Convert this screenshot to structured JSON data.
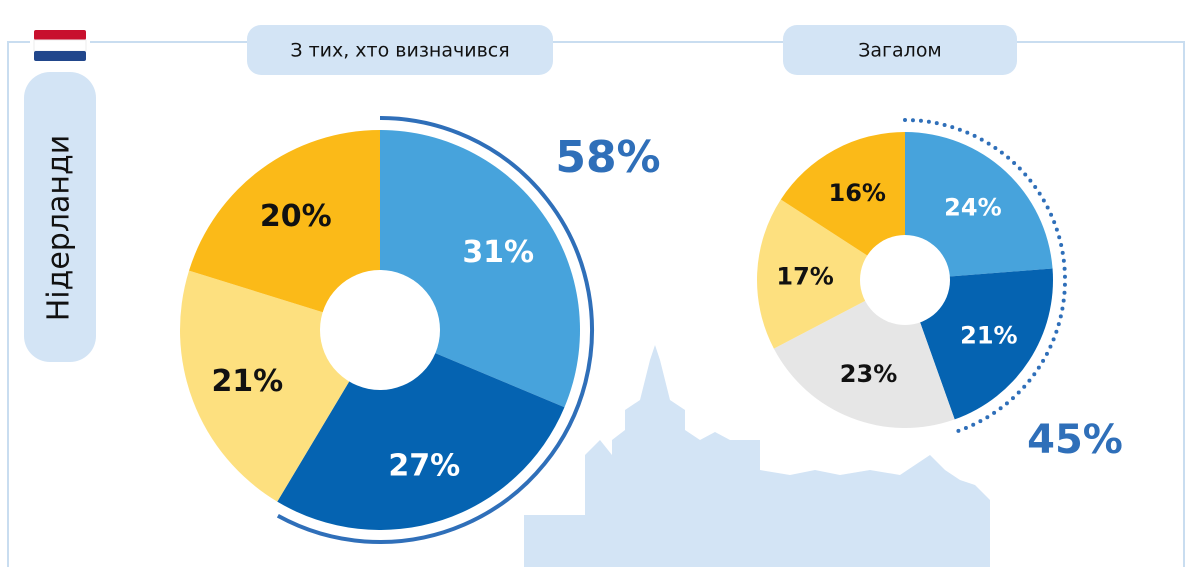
{
  "country": "Нідерланди",
  "chart_data": [
    {
      "type": "pie",
      "title": "З тих, хто визначився",
      "categories": [
        null,
        null,
        null,
        null
      ],
      "values": [
        31,
        27,
        21,
        20
      ],
      "value_labels": [
        "31%",
        "27%",
        "21%",
        "20%"
      ],
      "colors": [
        "#47a3dc",
        "#0563b1",
        "#fde07f",
        "#fbba18"
      ],
      "label_colors": [
        "#ffffff",
        "#ffffff",
        "#111111",
        "#111111"
      ],
      "highlight": {
        "value": 58,
        "label": "58%",
        "style": "solid",
        "color": "#2f6fb9"
      }
    },
    {
      "type": "pie",
      "title": "Загалом",
      "categories": [
        null,
        null,
        null,
        null,
        null
      ],
      "values": [
        24,
        21,
        23,
        17,
        16
      ],
      "value_labels": [
        "24%",
        "21%",
        "23%",
        "17%",
        "16%"
      ],
      "colors": [
        "#47a3dc",
        "#0563b1",
        "#e6e6e6",
        "#fde07f",
        "#fbba18"
      ],
      "label_colors": [
        "#ffffff",
        "#ffffff",
        "#111111",
        "#111111",
        "#111111"
      ],
      "highlight": {
        "value": 45,
        "label": "45%",
        "style": "dotted",
        "color": "#2f6fb9"
      }
    }
  ]
}
